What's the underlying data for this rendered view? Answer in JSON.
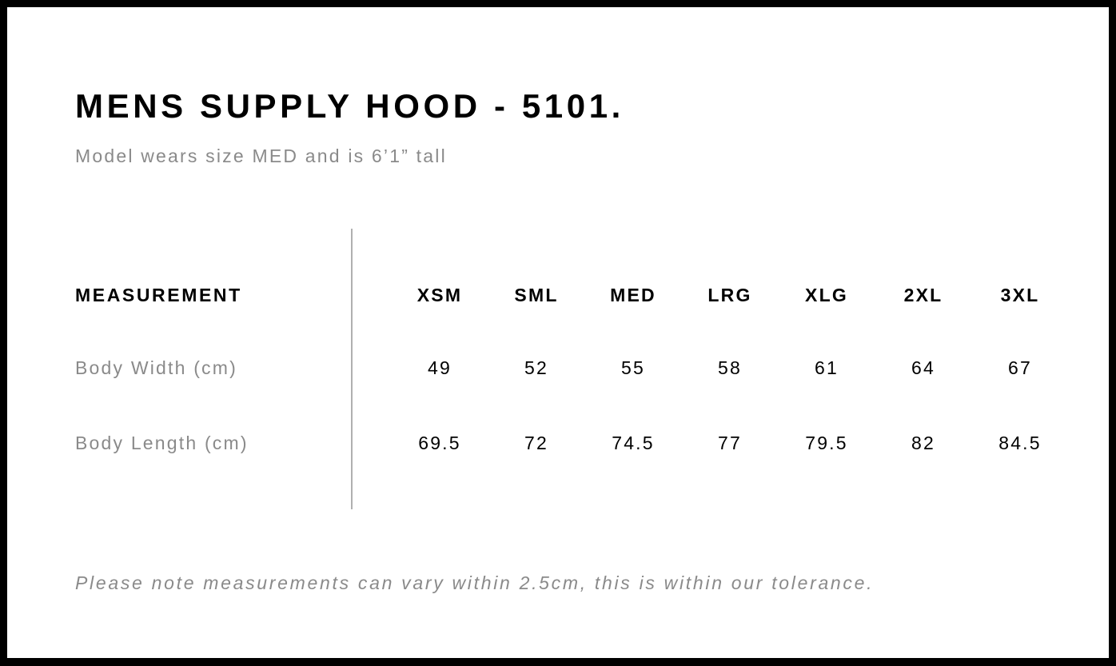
{
  "title": "MENS SUPPLY HOOD - 5101.",
  "subtitle": "Model wears size MED and is 6’1” tall",
  "table": {
    "header_label": "MEASUREMENT",
    "sizes": [
      "XSM",
      "SML",
      "MED",
      "LRG",
      "XLG",
      "2XL",
      "3XL"
    ],
    "rows": [
      {
        "label": "Body Width (cm)",
        "values": [
          "49",
          "52",
          "55",
          "58",
          "61",
          "64",
          "67"
        ]
      },
      {
        "label": "Body Length (cm)",
        "values": [
          "69.5",
          "72",
          "74.5",
          "77",
          "79.5",
          "82",
          "84.5"
        ]
      }
    ]
  },
  "note": "Please note measurements can vary within 2.5cm, this is within our tolerance."
}
